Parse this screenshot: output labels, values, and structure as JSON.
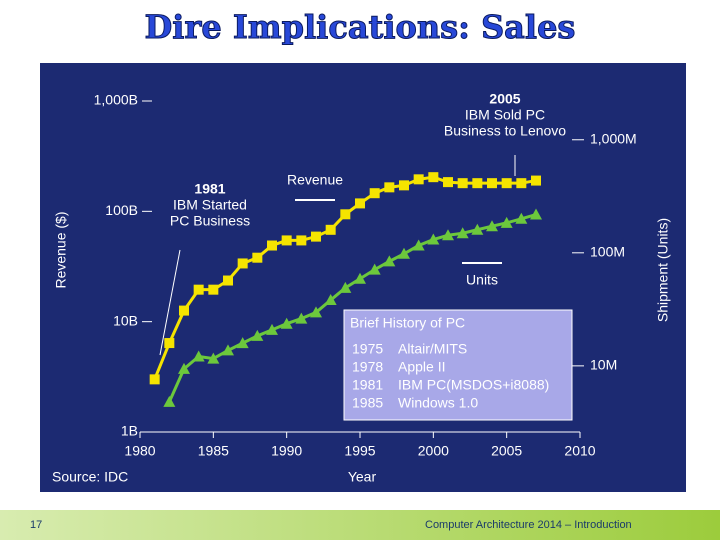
{
  "slide": {
    "title": "Dire Implications: Sales",
    "page_number": "17",
    "footer": "Computer Architecture 2014 – Introduction"
  },
  "chart_data": {
    "type": "line",
    "source": "Source: IDC",
    "x_label": "Year",
    "y_label": "Revenue ($)",
    "y2_label": "Shipment (Units)",
    "log_scale": true,
    "xlim": [
      1980,
      2010
    ],
    "xticks": [
      1980,
      1985,
      1990,
      1995,
      2000,
      2005,
      2010
    ],
    "ylim": [
      1,
      1000
    ],
    "yticks": [
      {
        "value": 1,
        "label": "1B"
      },
      {
        "value": 10,
        "label": "10B"
      },
      {
        "value": 100,
        "label": "100B"
      },
      {
        "value": 1000,
        "label": "1,000B"
      }
    ],
    "y2lim": [
      2.6,
      2700
    ],
    "y2ticks": [
      {
        "value": 10,
        "label": "10M"
      },
      {
        "value": 100,
        "label": "100M"
      },
      {
        "value": 1000,
        "label": "1,000M"
      }
    ],
    "x": [
      1981,
      1982,
      1983,
      1984,
      1985,
      1986,
      1987,
      1988,
      1989,
      1990,
      1991,
      1992,
      1993,
      1994,
      1995,
      1996,
      1997,
      1998,
      1999,
      2000,
      2001,
      2002,
      2003,
      2004,
      2005,
      2006,
      2007
    ],
    "series": [
      {
        "name": "Revenue",
        "color": "#f5e400",
        "marker": "square",
        "values": [
          3.0,
          6.4,
          12.6,
          19.5,
          19.5,
          23.6,
          33.7,
          38,
          49,
          54.5,
          54.5,
          59,
          68,
          94,
          118,
          146,
          165,
          172,
          195,
          204,
          184,
          180,
          180,
          180,
          180,
          180,
          190
        ]
      },
      {
        "name": "Units",
        "color": "#6cc83c",
        "marker": "triangle",
        "axis": "y2",
        "values": [
          null,
          4.8,
          9.4,
          12.1,
          11.6,
          13.7,
          15.9,
          18.4,
          20.8,
          23.6,
          26.2,
          29.7,
          38.2,
          49,
          59,
          71,
          84,
          98,
          116,
          131,
          143,
          149,
          160,
          172,
          184,
          200,
          218
        ]
      }
    ],
    "annotations": [
      {
        "lines": [
          "2005",
          "IBM Sold PC",
          "Business to Lenovo"
        ]
      },
      {
        "lines": [
          "1981",
          "IBM Started",
          "PC Business"
        ]
      }
    ],
    "history_box": {
      "title": "Brief History of PC",
      "rows": [
        [
          "1975",
          "Altair/MITS"
        ],
        [
          "1978",
          "Apple II"
        ],
        [
          "1981",
          "IBM PC(MSDOS+i8088)"
        ],
        [
          "1985",
          "Windows 1.0"
        ]
      ]
    }
  }
}
